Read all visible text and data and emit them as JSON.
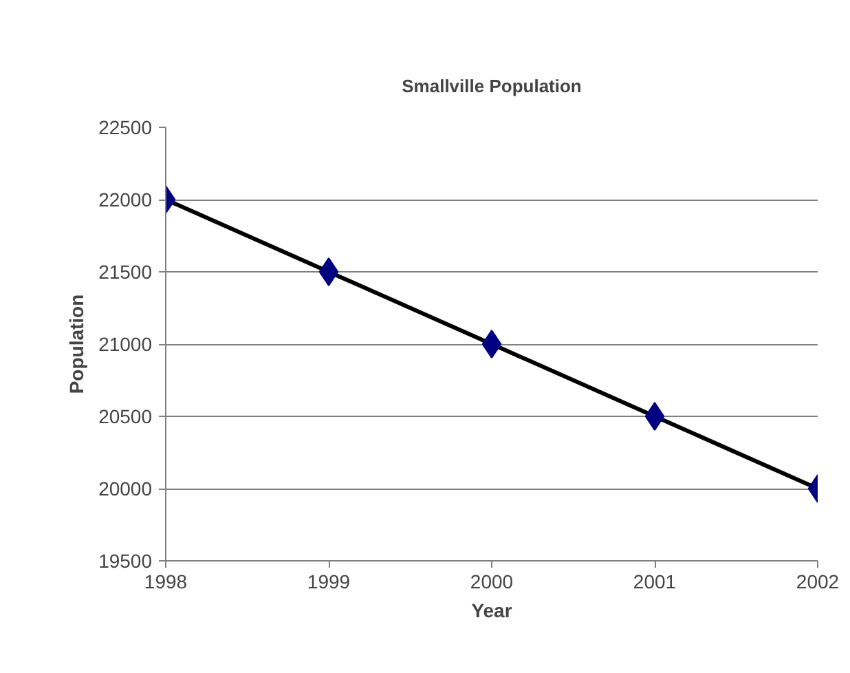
{
  "chart_data": {
    "type": "line",
    "title": "Smallville Population",
    "xlabel": "Year",
    "ylabel": "Population",
    "x": [
      1998,
      1999,
      2000,
      2001,
      2002
    ],
    "series": [
      {
        "color": "#000080",
        "values": [
          22000,
          21500,
          21000,
          20500,
          20000
        ]
      }
    ],
    "xlim": [
      1998,
      2002
    ],
    "xticks": [
      1998,
      1999,
      2000,
      2001,
      2002
    ],
    "ylim": [
      19500,
      22500
    ],
    "yticks": [
      19500,
      20000,
      20500,
      21000,
      21500,
      22000,
      22500
    ],
    "grid": "y",
    "marker": "diamond",
    "line_style": "solid"
  }
}
